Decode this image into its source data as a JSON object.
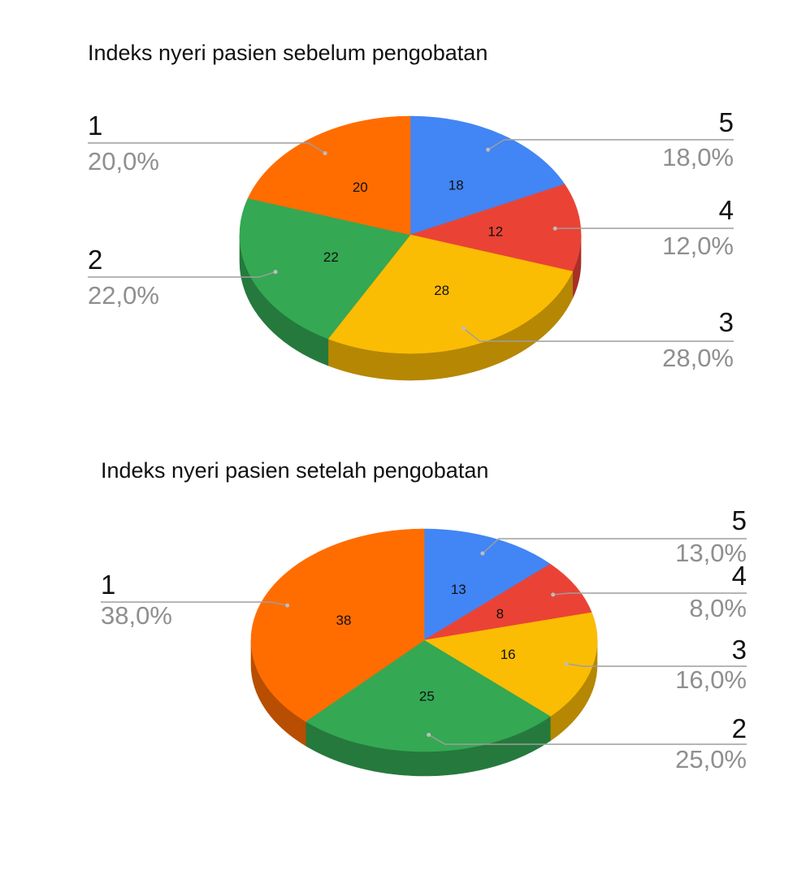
{
  "chart_data": [
    {
      "type": "pie",
      "style": "3d",
      "title": "Indeks nyeri pasien sebelum pengobatan",
      "categories": [
        "5",
        "4",
        "3",
        "2",
        "1"
      ],
      "values": [
        18,
        12,
        28,
        22,
        20
      ],
      "percent_labels": [
        "18,0%",
        "12,0%",
        "28,0%",
        "22,0%",
        "20,0%"
      ],
      "colors": [
        "#4285F4",
        "#EA4335",
        "#FBBC04",
        "#34A853",
        "#FF6D01"
      ]
    },
    {
      "type": "pie",
      "style": "3d",
      "title": "Indeks nyeri pasien setelah pengobatan",
      "categories": [
        "5",
        "4",
        "3",
        "2",
        "1"
      ],
      "values": [
        13,
        8,
        16,
        25,
        38
      ],
      "percent_labels": [
        "13,0%",
        "8,0%",
        "16,0%",
        "25,0%",
        "38,0%"
      ],
      "colors": [
        "#4285F4",
        "#EA4335",
        "#FBBC04",
        "#34A853",
        "#FF6D01"
      ]
    }
  ]
}
